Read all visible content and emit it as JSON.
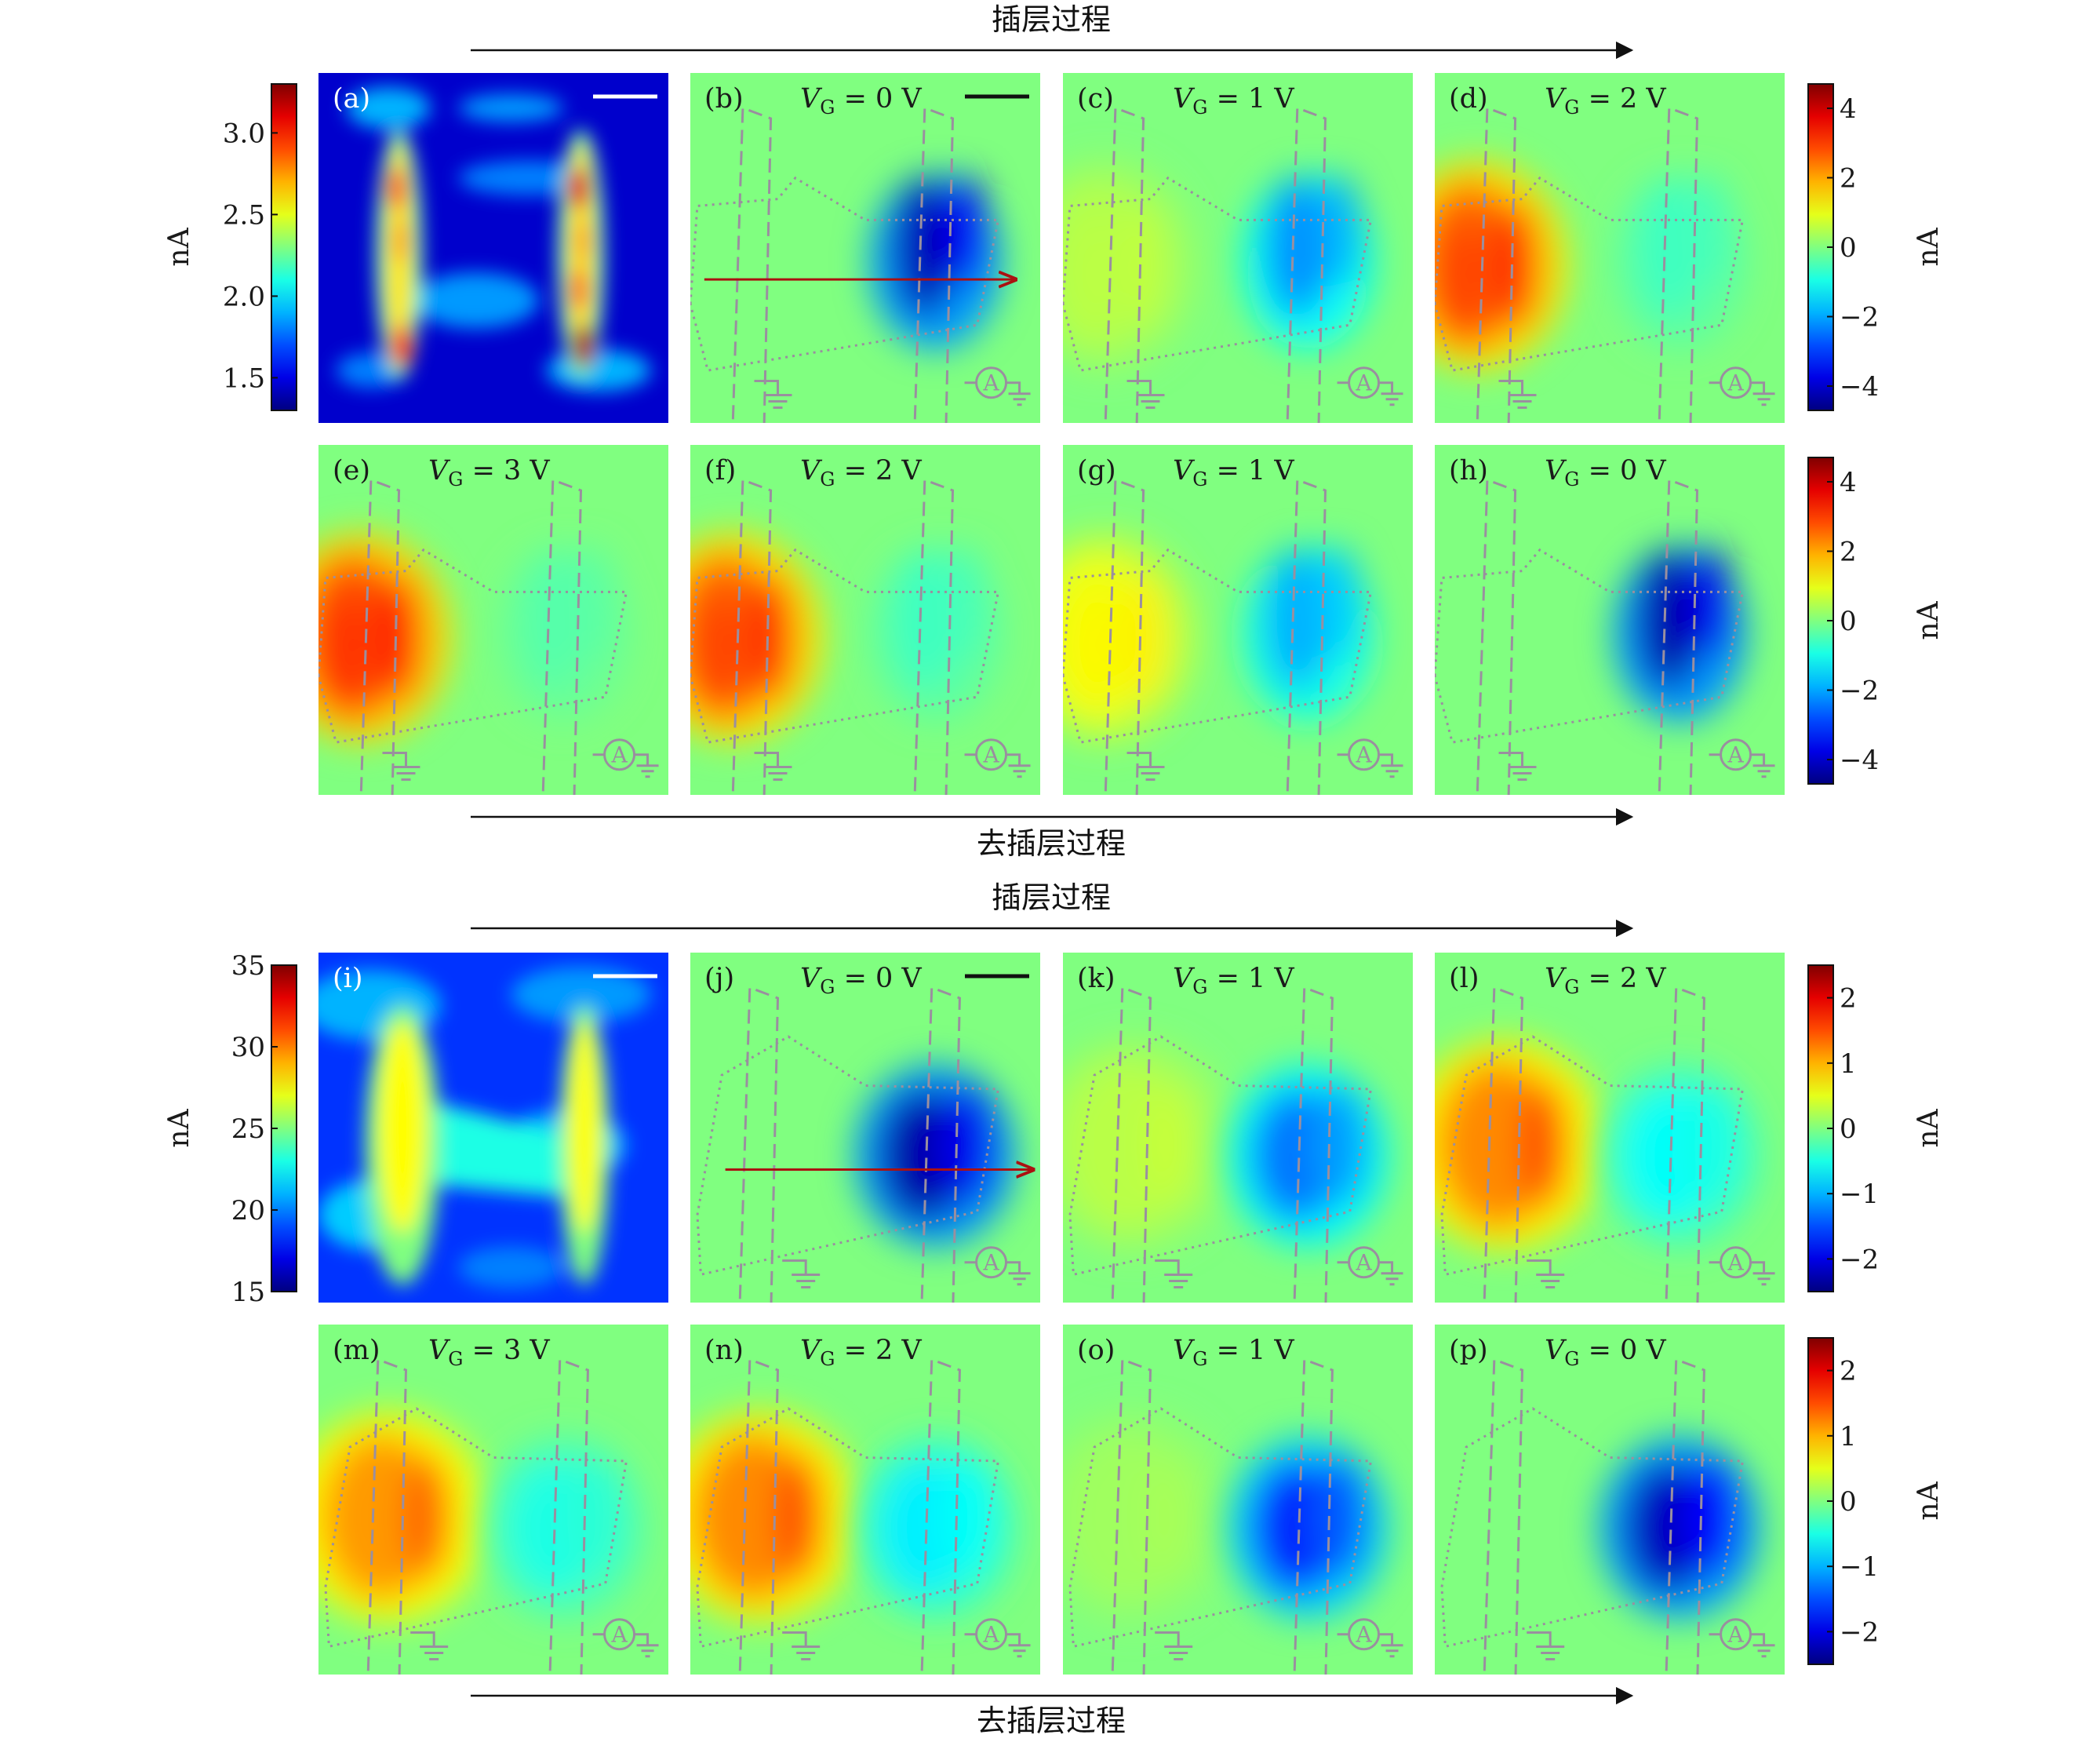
{
  "chart_data": {
    "type": "heatmap",
    "title": "",
    "processes": {
      "intercalation": "插层过程",
      "deintercalation": "去插层过程"
    },
    "unit": "nA",
    "colormap": "jet",
    "colors": {
      "background": "#ffffff",
      "axis": "#111111",
      "overlay": "#9a8f9f",
      "arrow": "#aa1111"
    },
    "colorbars": [
      {
        "id": "cb-ab",
        "min": 1.3,
        "max": 3.3,
        "ticks": [
          "1.5",
          "2.0",
          "2.5",
          "3.0"
        ],
        "tick_values": [
          1.5,
          2.0,
          2.5,
          3.0
        ],
        "label": "nA",
        "side": "left"
      },
      {
        "id": "cb-bd",
        "min": -4.7,
        "max": 4.7,
        "ticks": [
          "−4",
          "−2",
          "0",
          "2",
          "4"
        ],
        "tick_values": [
          -4,
          -2,
          0,
          2,
          4
        ],
        "label": "nA",
        "side": "right"
      },
      {
        "id": "cb-eh",
        "min": -4.7,
        "max": 4.7,
        "ticks": [
          "−4",
          "−2",
          "0",
          "2",
          "4"
        ],
        "tick_values": [
          -4,
          -2,
          0,
          2,
          4
        ],
        "label": "nA",
        "side": "right"
      },
      {
        "id": "cb-i",
        "min": 15,
        "max": 35,
        "ticks": [
          "15",
          "20",
          "25",
          "30",
          "35"
        ],
        "tick_values": [
          15,
          20,
          25,
          30,
          35
        ],
        "label": "nA",
        "side": "left"
      },
      {
        "id": "cb-jl",
        "min": -2.5,
        "max": 2.5,
        "ticks": [
          "−2",
          "−1",
          "0",
          "1",
          "2"
        ],
        "tick_values": [
          -2,
          -1,
          0,
          1,
          2
        ],
        "label": "nA",
        "side": "right"
      },
      {
        "id": "cb-mp",
        "min": -2.5,
        "max": 2.5,
        "ticks": [
          "−2",
          "−1",
          "0",
          "1",
          "2"
        ],
        "tick_values": [
          -2,
          -1,
          0,
          1,
          2
        ],
        "label": "nA",
        "side": "right"
      }
    ],
    "panels": [
      {
        "id": "a",
        "label": "(a)",
        "kind": "conductance",
        "vg": null,
        "colorbar": "cb-ab"
      },
      {
        "id": "b",
        "label": "(b)",
        "kind": "photocurrent",
        "vg": "0",
        "colorbar": "cb-bd",
        "peak_left": 0,
        "peak_right": -4.2,
        "style": 1
      },
      {
        "id": "c",
        "label": "(c)",
        "kind": "photocurrent",
        "vg": "1",
        "colorbar": "cb-bd",
        "peak_left": 0.6,
        "peak_right": -2.2,
        "style": 1
      },
      {
        "id": "d",
        "label": "(d)",
        "kind": "photocurrent",
        "vg": "2",
        "colorbar": "cb-bd",
        "peak_left": 3.2,
        "peak_right": -0.6,
        "style": 1
      },
      {
        "id": "e",
        "label": "(e)",
        "kind": "photocurrent",
        "vg": "3",
        "colorbar": "cb-eh",
        "peak_left": 3.4,
        "peak_right": -0.4,
        "style": 1
      },
      {
        "id": "f",
        "label": "(f)",
        "kind": "photocurrent",
        "vg": "2",
        "colorbar": "cb-eh",
        "peak_left": 3.2,
        "peak_right": -0.6,
        "style": 1
      },
      {
        "id": "g",
        "label": "(g)",
        "kind": "photocurrent",
        "vg": "1",
        "colorbar": "cb-eh",
        "peak_left": 1.3,
        "peak_right": -1.9,
        "style": 1
      },
      {
        "id": "h",
        "label": "(h)",
        "kind": "photocurrent",
        "vg": "0",
        "colorbar": "cb-eh",
        "peak_left": 0,
        "peak_right": -4.3,
        "style": 1
      },
      {
        "id": "i",
        "label": "(i)",
        "kind": "conductance",
        "vg": null,
        "colorbar": "cb-i"
      },
      {
        "id": "j",
        "label": "(j)",
        "kind": "photocurrent",
        "vg": "0",
        "colorbar": "cb-jl",
        "peak_left": 0,
        "peak_right": -2.3,
        "style": 2
      },
      {
        "id": "k",
        "label": "(k)",
        "kind": "photocurrent",
        "vg": "1",
        "colorbar": "cb-jl",
        "peak_left": 0.35,
        "peak_right": -1.3,
        "style": 2
      },
      {
        "id": "l",
        "label": "(l)",
        "kind": "photocurrent",
        "vg": "2",
        "colorbar": "cb-jl",
        "peak_left": 1.5,
        "peak_right": -0.6,
        "style": 2
      },
      {
        "id": "m",
        "label": "(m)",
        "kind": "photocurrent",
        "vg": "3",
        "colorbar": "cb-mp",
        "peak_left": 1.4,
        "peak_right": -0.5,
        "style": 2
      },
      {
        "id": "n",
        "label": "(n)",
        "kind": "photocurrent",
        "vg": "2",
        "colorbar": "cb-mp",
        "peak_left": 1.5,
        "peak_right": -0.7,
        "style": 2
      },
      {
        "id": "o",
        "label": "(o)",
        "kind": "photocurrent",
        "vg": "1",
        "colorbar": "cb-mp",
        "peak_left": 0.2,
        "peak_right": -1.7,
        "style": 2
      },
      {
        "id": "p",
        "label": "(p)",
        "kind": "photocurrent",
        "vg": "0",
        "colorbar": "cb-mp",
        "peak_left": 0,
        "peak_right": -2.2,
        "style": 2
      }
    ],
    "ammeter_symbol": "A",
    "vg_prefix": "V",
    "vg_sub": "G",
    "vg_eq": " = ",
    "vg_unit": " V"
  }
}
